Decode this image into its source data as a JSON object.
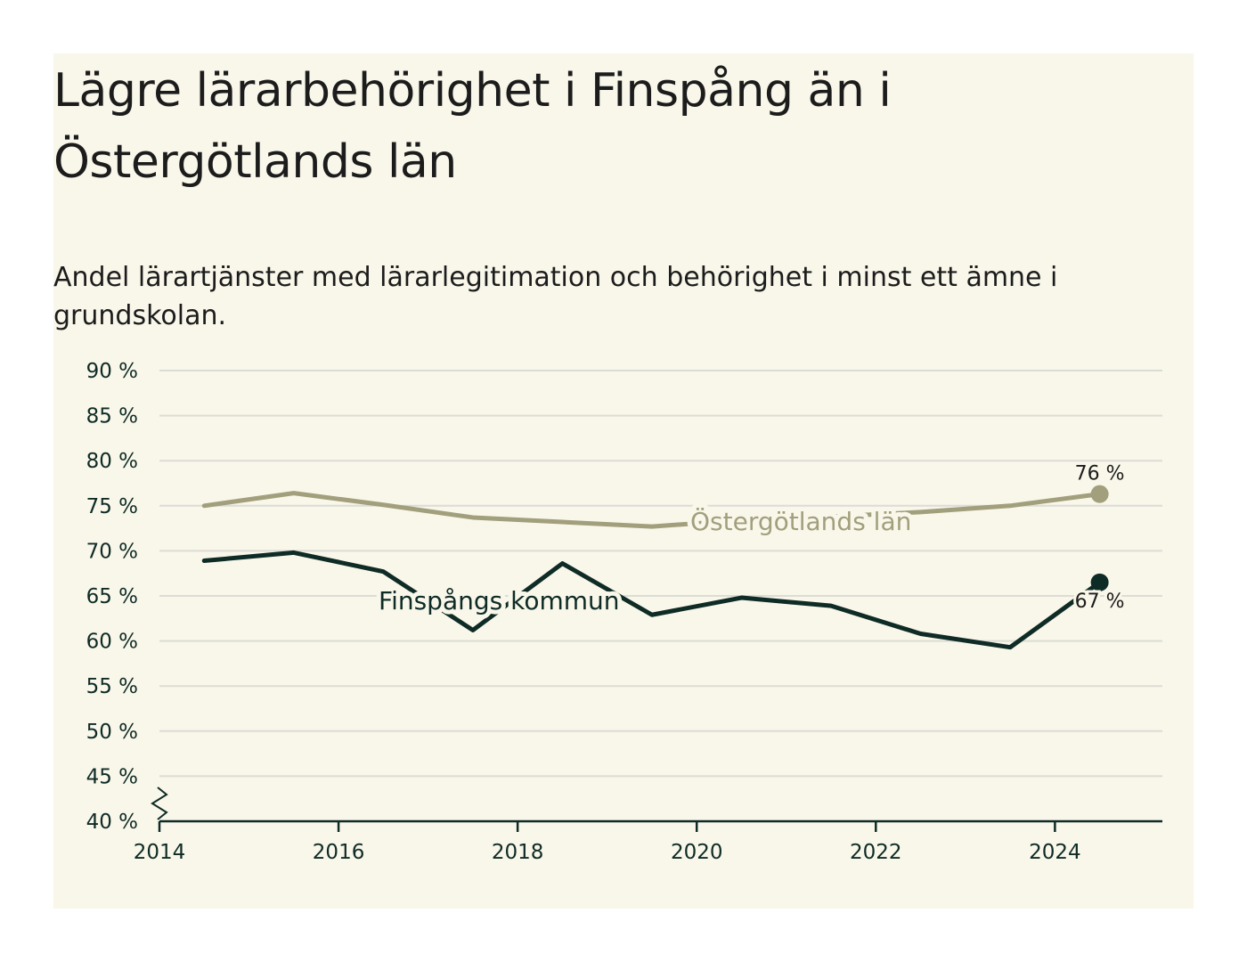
{
  "header": {
    "title": "Lägre lärarbehörighet i Finspång än i Östergötlands län",
    "subtitle": "Andel lärartjänster med lärarlegitimation och behörighet i minst ett ämne i grundskolan."
  },
  "colors": {
    "background": "#f9f7ea",
    "finspang": "#0f2b26",
    "ostergotland": "#a19f7c",
    "grid": "#dcdcd6",
    "axis": "#0f2b26"
  },
  "chart_data": {
    "type": "line",
    "title": "Lägre lärarbehörighet i Finspång än i Östergötlands län",
    "subtitle": "Andel lärartjänster med lärarlegitimation och behörighet i minst ett ämne i grundskolan.",
    "xlabel": "",
    "ylabel": "",
    "xlim": [
      2014,
      2025.2
    ],
    "ylim": [
      40,
      90
    ],
    "y_ticks": [
      {
        "value": 90,
        "label": "90 %"
      },
      {
        "value": 85,
        "label": "85 %"
      },
      {
        "value": 80,
        "label": "80 %"
      },
      {
        "value": 75,
        "label": "75 %"
      },
      {
        "value": 70,
        "label": "70 %"
      },
      {
        "value": 65,
        "label": "65 %"
      },
      {
        "value": 60,
        "label": "60 %"
      },
      {
        "value": 55,
        "label": "55 %"
      },
      {
        "value": 50,
        "label": "50 %"
      },
      {
        "value": 45,
        "label": "45 %"
      },
      {
        "value": 40,
        "label": "40 %"
      }
    ],
    "x_ticks": [
      {
        "value": 2014,
        "label": "2014"
      },
      {
        "value": 2016,
        "label": "2016"
      },
      {
        "value": 2018,
        "label": "2018"
      },
      {
        "value": 2020,
        "label": "2020"
      },
      {
        "value": 2022,
        "label": "2022"
      },
      {
        "value": 2024,
        "label": "2024"
      }
    ],
    "grid": true,
    "y_axis_break": true,
    "series": [
      {
        "name": "Östergötlands län",
        "color": "#a19f7c",
        "x": [
          2014.5,
          2015.5,
          2016.5,
          2017.5,
          2018.5,
          2019.5,
          2020.5,
          2021.5,
          2022.5,
          2023.5,
          2024.5
        ],
        "values": [
          75.0,
          76.4,
          75.1,
          73.7,
          73.2,
          72.7,
          73.4,
          73.8,
          74.3,
          75.0,
          76.3
        ],
        "end_label": "76 %"
      },
      {
        "name": "Finspångs kommun",
        "color": "#0f2b26",
        "x": [
          2014.5,
          2015.5,
          2016.5,
          2017.5,
          2018.5,
          2019.5,
          2020.5,
          2021.5,
          2022.5,
          2023.5,
          2024.5
        ],
        "values": [
          68.9,
          69.8,
          67.7,
          61.2,
          68.6,
          62.9,
          64.8,
          63.9,
          60.8,
          59.3,
          66.5
        ],
        "end_label": "67 %"
      }
    ]
  }
}
